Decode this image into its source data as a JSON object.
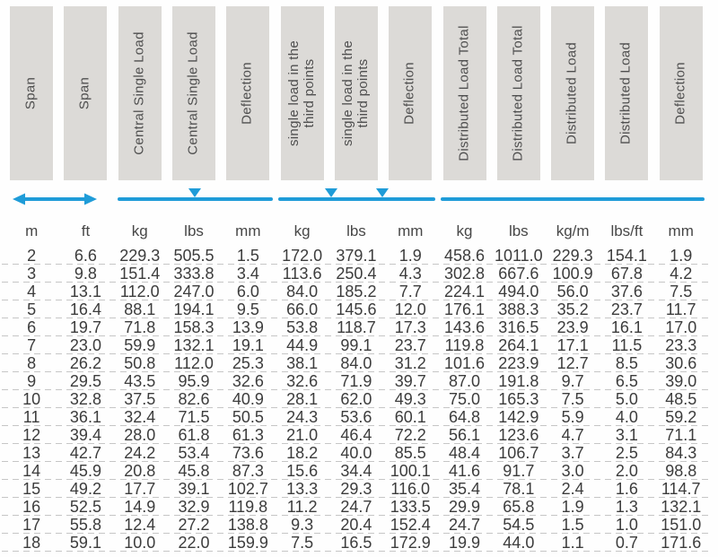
{
  "colors": {
    "accent_blue": "#1f9cd8",
    "header_gray": "#dcdad7",
    "separator": "#c6c6c6",
    "text": "#3c3c3c"
  },
  "table": {
    "column_headers": [
      "Span",
      "Span",
      "Central Single Load",
      "Central Single Load",
      "Deflection",
      "single load in the\nthird points",
      "single load in the\nthird points",
      "Deflection",
      "Distributed Load Total",
      "Distributed Load Total",
      "Distributed Load",
      "Distributed Load",
      "Deflection"
    ],
    "units": [
      "m",
      "ft",
      "kg",
      "lbs",
      "mm",
      "kg",
      "lbs",
      "mm",
      "kg",
      "lbs",
      "kg/m",
      "lbs/ft",
      "mm"
    ],
    "rows": [
      [
        "2",
        "6.6",
        "229.3",
        "505.5",
        "1.5",
        "172.0",
        "379.1",
        "1.9",
        "458.6",
        "1011.0",
        "229.3",
        "154.1",
        "1.9"
      ],
      [
        "3",
        "9.8",
        "151.4",
        "333.8",
        "3.4",
        "113.6",
        "250.4",
        "4.3",
        "302.8",
        "667.6",
        "100.9",
        "67.8",
        "4.2"
      ],
      [
        "4",
        "13.1",
        "112.0",
        "247.0",
        "6.0",
        "84.0",
        "185.2",
        "7.7",
        "224.1",
        "494.0",
        "56.0",
        "37.6",
        "7.5"
      ],
      [
        "5",
        "16.4",
        "88.1",
        "194.1",
        "9.5",
        "66.0",
        "145.6",
        "12.0",
        "176.1",
        "388.3",
        "35.2",
        "23.7",
        "11.7"
      ],
      [
        "6",
        "19.7",
        "71.8",
        "158.3",
        "13.9",
        "53.8",
        "118.7",
        "17.3",
        "143.6",
        "316.5",
        "23.9",
        "16.1",
        "17.0"
      ],
      [
        "7",
        "23.0",
        "59.9",
        "132.1",
        "19.1",
        "44.9",
        "99.1",
        "23.7",
        "119.8",
        "264.1",
        "17.1",
        "11.5",
        "23.3"
      ],
      [
        "8",
        "26.2",
        "50.8",
        "112.0",
        "25.3",
        "38.1",
        "84.0",
        "31.2",
        "101.6",
        "223.9",
        "12.7",
        "8.5",
        "30.6"
      ],
      [
        "9",
        "29.5",
        "43.5",
        "95.9",
        "32.6",
        "32.6",
        "71.9",
        "39.7",
        "87.0",
        "191.8",
        "9.7",
        "6.5",
        "39.0"
      ],
      [
        "10",
        "32.8",
        "37.5",
        "82.6",
        "40.9",
        "28.1",
        "62.0",
        "49.3",
        "75.0",
        "165.3",
        "7.5",
        "5.0",
        "48.5"
      ],
      [
        "11",
        "36.1",
        "32.4",
        "71.5",
        "50.5",
        "24.3",
        "53.6",
        "60.1",
        "64.8",
        "142.9",
        "5.9",
        "4.0",
        "59.2"
      ],
      [
        "12",
        "39.4",
        "28.0",
        "61.8",
        "61.3",
        "21.0",
        "46.4",
        "72.2",
        "56.1",
        "123.6",
        "4.7",
        "3.1",
        "71.1"
      ],
      [
        "13",
        "42.7",
        "24.2",
        "53.4",
        "73.6",
        "18.2",
        "40.0",
        "85.5",
        "48.4",
        "106.7",
        "3.7",
        "2.5",
        "84.3"
      ],
      [
        "14",
        "45.9",
        "20.8",
        "45.8",
        "87.3",
        "15.6",
        "34.4",
        "100.1",
        "41.6",
        "91.7",
        "3.0",
        "2.0",
        "98.8"
      ],
      [
        "15",
        "49.2",
        "17.7",
        "39.1",
        "102.7",
        "13.3",
        "29.3",
        "116.0",
        "35.4",
        "78.1",
        "2.4",
        "1.6",
        "114.7"
      ],
      [
        "16",
        "52.5",
        "14.9",
        "32.9",
        "119.8",
        "11.2",
        "24.7",
        "133.5",
        "29.9",
        "65.8",
        "1.9",
        "1.3",
        "132.1"
      ],
      [
        "17",
        "55.8",
        "12.4",
        "27.2",
        "138.8",
        "9.3",
        "20.4",
        "152.4",
        "24.7",
        "54.5",
        "1.5",
        "1.0",
        "151.0"
      ],
      [
        "18",
        "59.1",
        "10.0",
        "22.0",
        "159.9",
        "7.5",
        "16.5",
        "172.9",
        "19.9",
        "44.0",
        "1.1",
        "0.7",
        "171.6"
      ]
    ]
  },
  "diagram": {
    "span_marker": "double-headed-arrow",
    "central_load_group": "beam line with one load triangle at midspan",
    "third_points_group": "beam line with two load triangles at third points",
    "distributed_group": "plain beam line"
  }
}
